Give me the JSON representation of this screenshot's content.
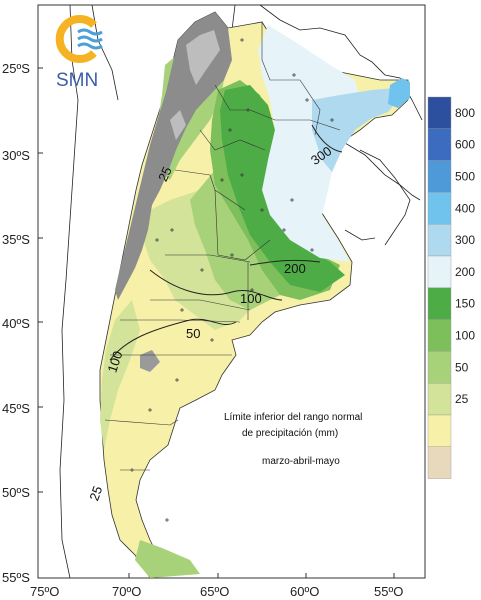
{
  "logo": {
    "text": "SMN"
  },
  "axes": {
    "lat_labels": [
      "25ºS",
      "30ºS",
      "35ºS",
      "40ºS",
      "45ºS",
      "50ºS",
      "55ºS"
    ],
    "lon_labels": [
      "75ºO",
      "70ºO",
      "65ºO",
      "60ºO",
      "55ºO"
    ]
  },
  "contour_labels": [
    "25",
    "50",
    "100",
    "100",
    "200",
    "300",
    "25"
  ],
  "caption": {
    "line1": "Límite inferior del rango normal",
    "line2": "de precipitación (mm)",
    "line3": "marzo-abril-mayo"
  },
  "legend": {
    "items": [
      {
        "label": "800",
        "color": "#2c4f9e"
      },
      {
        "label": "600",
        "color": "#3c6cc0"
      },
      {
        "label": "500",
        "color": "#4e9ad8"
      },
      {
        "label": "400",
        "color": "#6fc3ec"
      },
      {
        "label": "300",
        "color": "#aed9ee"
      },
      {
        "label": "200",
        "color": "#e6f3f9"
      },
      {
        "label": "150",
        "color": "#4eac46"
      },
      {
        "label": "100",
        "color": "#7dbf5b"
      },
      {
        "label": "50",
        "color": "#a8d27a"
      },
      {
        "label": "25",
        "color": "#d3e39a"
      },
      {
        "label": "",
        "color": "#f6f0a8"
      },
      {
        "label": "",
        "color": "#e8d9bd"
      }
    ]
  },
  "colors": {
    "cordillera": "#8c8c8c",
    "beige": "#e8d9bd",
    "yellow": "#f6f0a8",
    "light_green": "#d3e39a",
    "green": "#a8d27a",
    "mid_green": "#7dbf5b",
    "dark_green": "#4eac46",
    "pale_blue": "#e6f3f9",
    "light_blue": "#aed9ee",
    "blue": "#6fc3ec"
  }
}
